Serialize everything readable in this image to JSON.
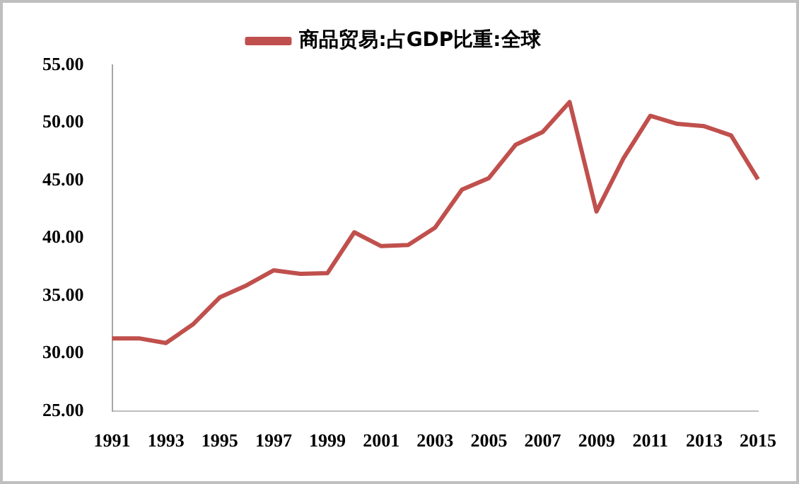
{
  "chart_data": {
    "type": "line",
    "categories": [
      "1991",
      null,
      "1993",
      null,
      "1995",
      null,
      "1997",
      null,
      "1999",
      null,
      "2001",
      null,
      "2003",
      null,
      "2005",
      null,
      "2007",
      null,
      "2009",
      null,
      "2011",
      null,
      "2013",
      null,
      "2015"
    ],
    "series": [
      {
        "name": "商品贸易:占GDP比重:全球",
        "color": "#c0504d",
        "values": [
          31.3,
          31.3,
          30.9,
          32.5,
          34.85,
          35.9,
          37.2,
          36.9,
          36.95,
          40.5,
          39.3,
          39.4,
          40.9,
          44.2,
          45.2,
          48.1,
          49.2,
          51.8,
          42.3,
          46.9,
          50.6,
          49.9,
          49.7,
          48.9,
          45.1
        ]
      }
    ],
    "ylim": [
      25,
      55
    ],
    "yticks": [
      {
        "value": 25,
        "label": "25.00"
      },
      {
        "value": 30,
        "label": "30.00"
      },
      {
        "value": 35,
        "label": "35.00"
      },
      {
        "value": 40,
        "label": "40.00"
      },
      {
        "value": 45,
        "label": "45.00"
      },
      {
        "value": 50,
        "label": "50.00"
      },
      {
        "value": 55,
        "label": "55.00"
      }
    ],
    "grid": false,
    "legend": "top",
    "marker": "none",
    "line_style": "solid"
  }
}
